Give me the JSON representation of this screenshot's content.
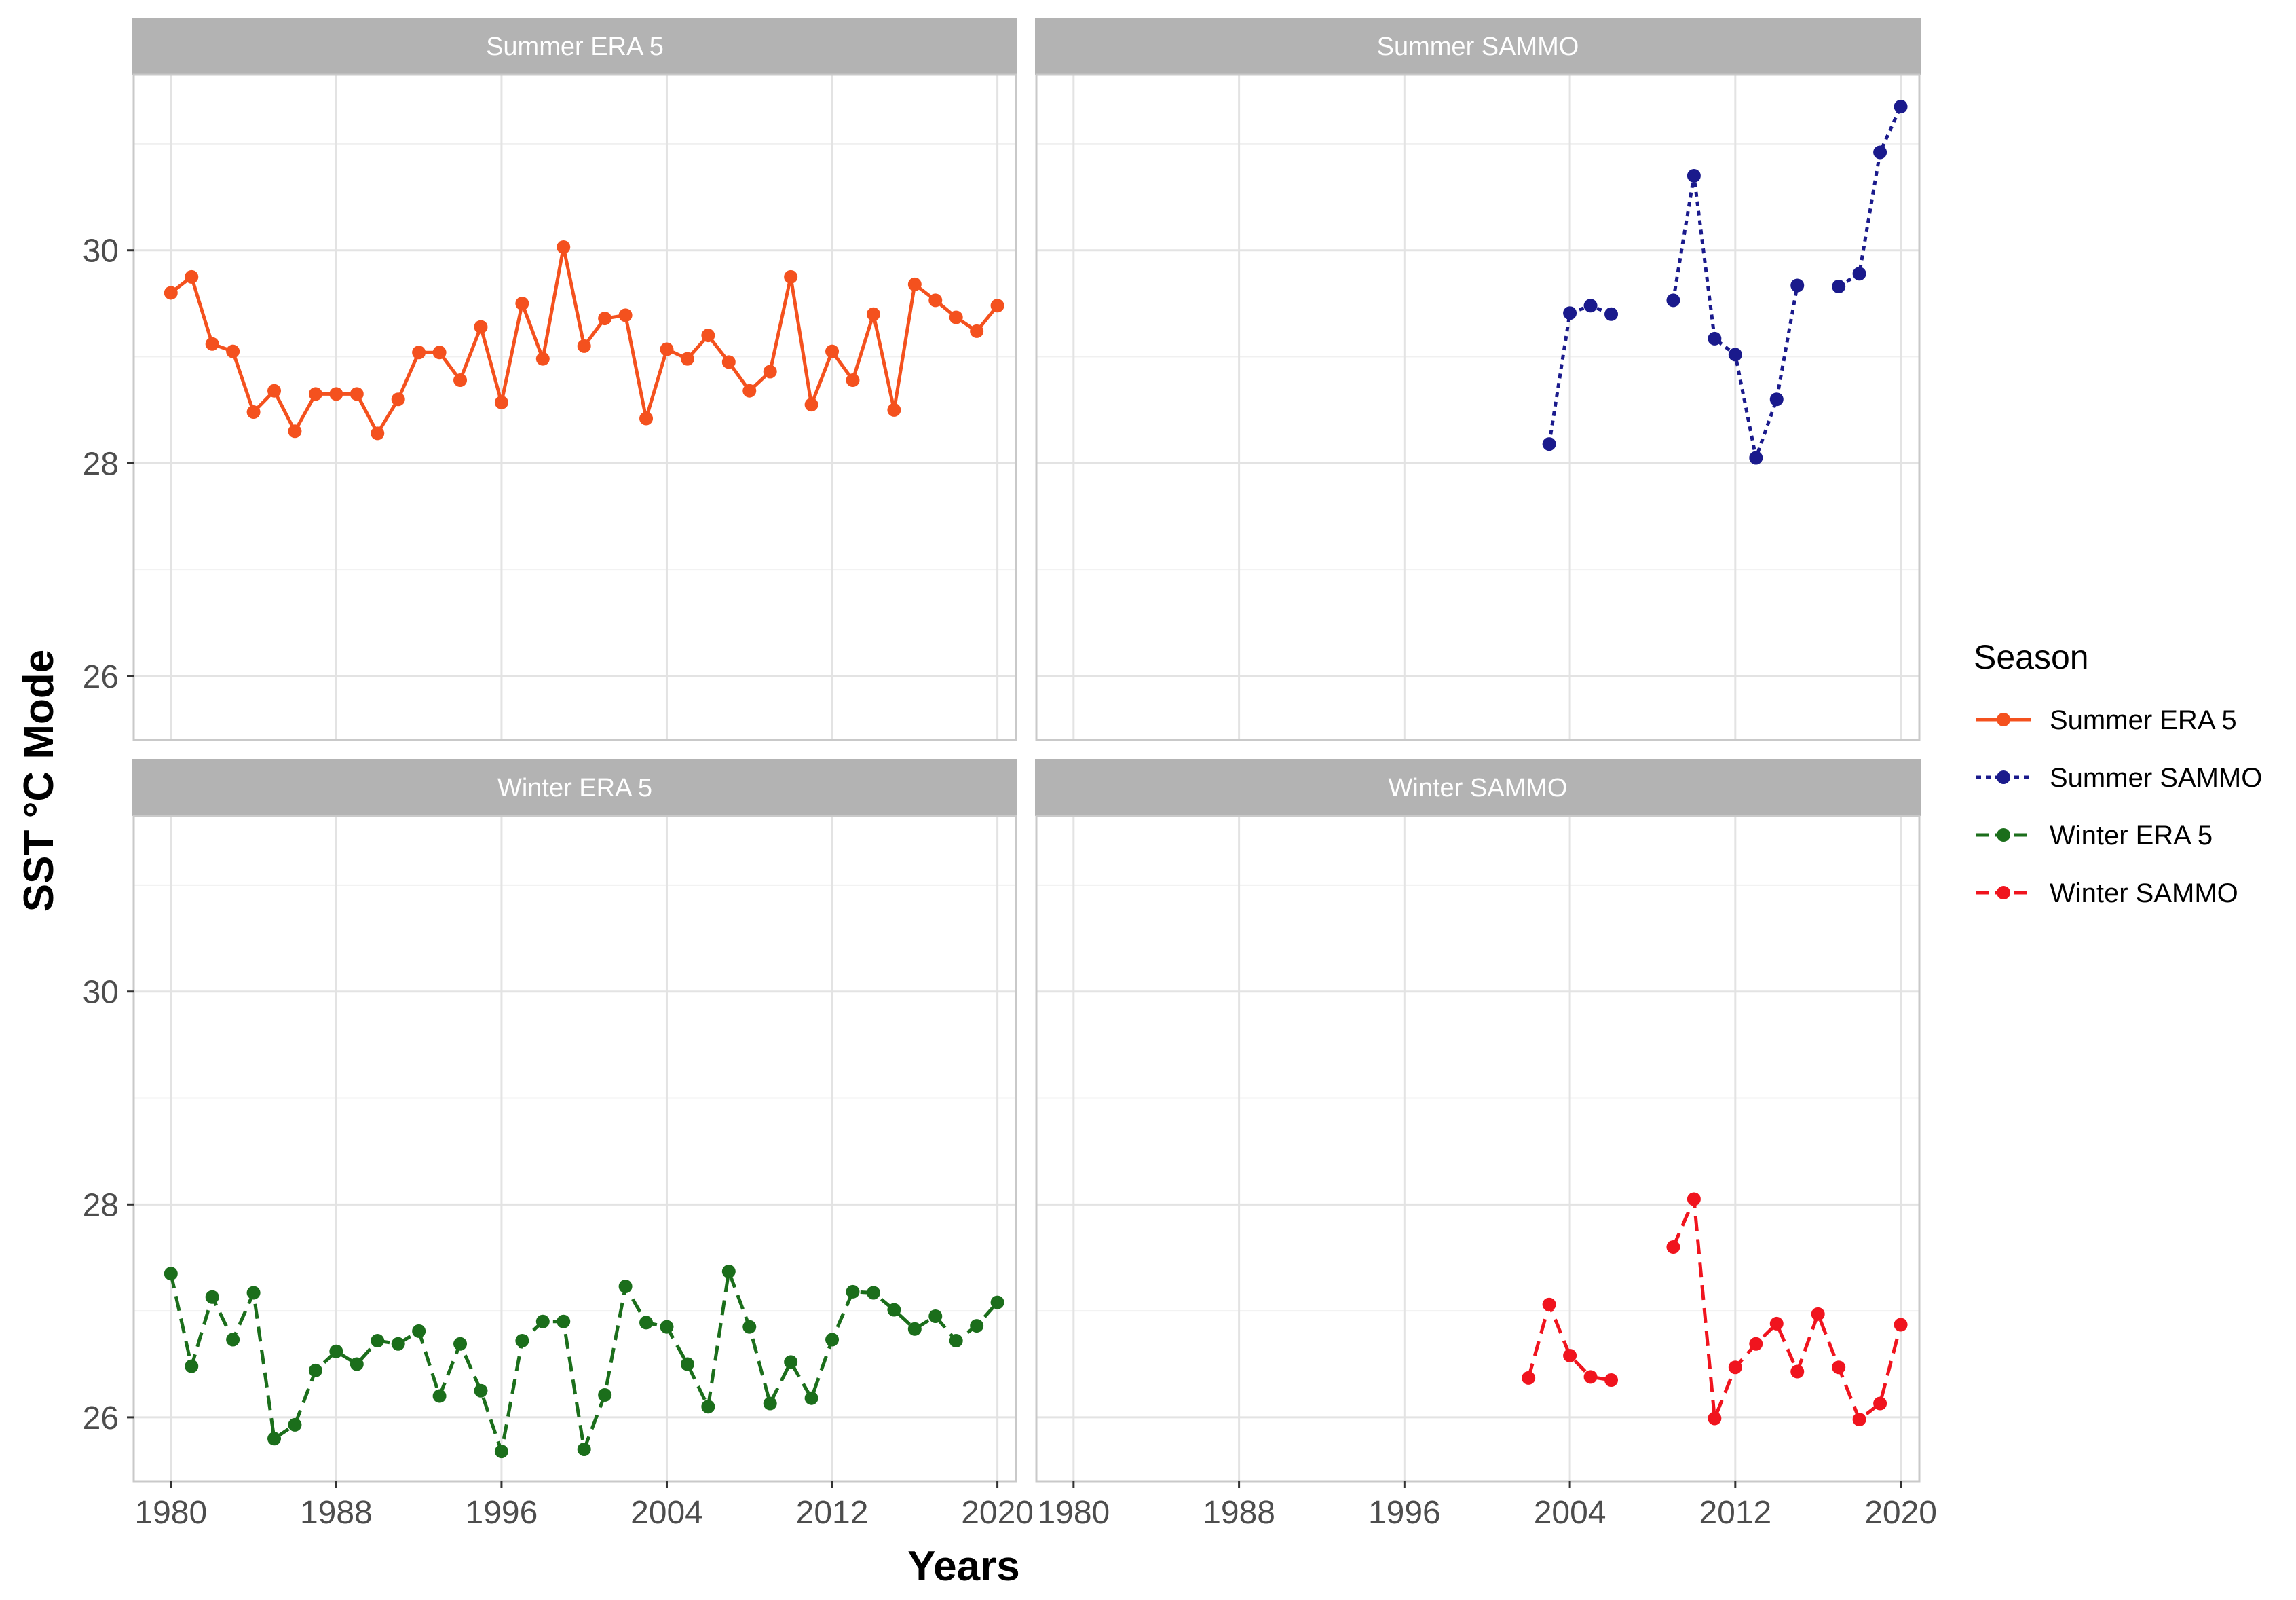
{
  "chart_data": {
    "type": "line",
    "xlabel": "Years",
    "ylabel": "SST °C Mode",
    "xlim": [
      1978.2,
      2020.9
    ],
    "ylim": [
      25.4,
      31.65
    ],
    "x_ticks": [
      1980,
      1988,
      1996,
      2004,
      2012,
      2020
    ],
    "y_ticks": [
      26,
      28,
      30
    ],
    "grid": true,
    "legend": {
      "title": "Season",
      "placement": "right",
      "entries": [
        "Summer ERA 5",
        "Summer SAMMO",
        "Winter ERA 5",
        "Winter SAMMO"
      ]
    },
    "series": [
      {
        "name": "Summer ERA 5",
        "color": "#F4511E",
        "line_style": "solid",
        "x": [
          1980,
          1981,
          1982,
          1983,
          1984,
          1985,
          1986,
          1987,
          1988,
          1989,
          1990,
          1991,
          1992,
          1993,
          1994,
          1995,
          1996,
          1997,
          1998,
          1999,
          2000,
          2001,
          2002,
          2003,
          2004,
          2005,
          2006,
          2007,
          2008,
          2009,
          2010,
          2011,
          2012,
          2013,
          2014,
          2015,
          2016,
          2017,
          2018,
          2019,
          2020
        ],
        "y": [
          29.6,
          29.75,
          29.12,
          29.05,
          28.48,
          28.68,
          28.3,
          28.65,
          28.65,
          28.65,
          28.28,
          28.6,
          29.04,
          29.04,
          28.78,
          29.28,
          28.57,
          29.5,
          28.98,
          30.03,
          29.1,
          29.36,
          29.39,
          28.42,
          29.07,
          28.98,
          29.2,
          28.95,
          28.68,
          28.86,
          29.75,
          28.55,
          29.05,
          28.78,
          29.4,
          28.5,
          29.68,
          29.53,
          29.37,
          29.24,
          29.48
        ]
      },
      {
        "name": "Summer SAMMO",
        "color": "#1A1A8C",
        "line_style": "dotted",
        "x": [
          2003,
          2004,
          2005,
          2006,
          2007,
          2008,
          2009,
          2010,
          2011,
          2012,
          2013,
          2014,
          2015,
          2016,
          2017,
          2018,
          2019,
          2020
        ],
        "y": [
          28.18,
          29.41,
          29.48,
          29.4,
          null,
          null,
          29.53,
          30.7,
          29.17,
          29.02,
          28.05,
          28.6,
          29.67,
          null,
          29.66,
          29.78,
          30.92,
          31.35
        ]
      },
      {
        "name": "Winter ERA 5",
        "color": "#1B6E1B",
        "line_style": "dashed",
        "x": [
          1980,
          1981,
          1982,
          1983,
          1984,
          1985,
          1986,
          1987,
          1988,
          1989,
          1990,
          1991,
          1992,
          1993,
          1994,
          1995,
          1996,
          1997,
          1998,
          1999,
          2000,
          2001,
          2002,
          2003,
          2004,
          2005,
          2006,
          2007,
          2008,
          2009,
          2010,
          2011,
          2012,
          2013,
          2014,
          2015,
          2016,
          2017,
          2018,
          2019,
          2020
        ],
        "y": [
          27.35,
          26.48,
          27.13,
          26.73,
          27.17,
          25.8,
          25.93,
          26.44,
          26.62,
          26.5,
          26.72,
          26.69,
          26.81,
          26.2,
          26.69,
          26.25,
          25.68,
          26.72,
          26.9,
          26.9,
          25.7,
          26.21,
          27.23,
          26.89,
          26.85,
          26.5,
          26.1,
          27.37,
          26.85,
          26.13,
          26.52,
          26.18,
          26.73,
          27.18,
          27.17,
          27.01,
          26.83,
          26.95,
          26.72,
          26.86,
          27.08
        ]
      },
      {
        "name": "Winter SAMMO",
        "color": "#F0141E",
        "line_style": "dashed",
        "x": [
          2002,
          2003,
          2004,
          2005,
          2006,
          2007,
          2008,
          2009,
          2010,
          2011,
          2012,
          2013,
          2014,
          2015,
          2016,
          2017,
          2018,
          2019,
          2020
        ],
        "y": [
          26.37,
          27.06,
          26.58,
          26.38,
          26.35,
          null,
          null,
          27.6,
          28.05,
          25.99,
          26.47,
          26.69,
          26.88,
          26.43,
          26.97,
          26.47,
          25.98,
          26.13,
          26.87
        ]
      }
    ],
    "panels": [
      {
        "title": "Summer ERA 5",
        "series": "Summer ERA 5"
      },
      {
        "title": "Summer SAMMO",
        "series": "Summer SAMMO"
      },
      {
        "title": "Winter ERA 5",
        "series": "Winter ERA 5"
      },
      {
        "title": "Winter SAMMO",
        "series": "Winter SAMMO"
      }
    ]
  }
}
